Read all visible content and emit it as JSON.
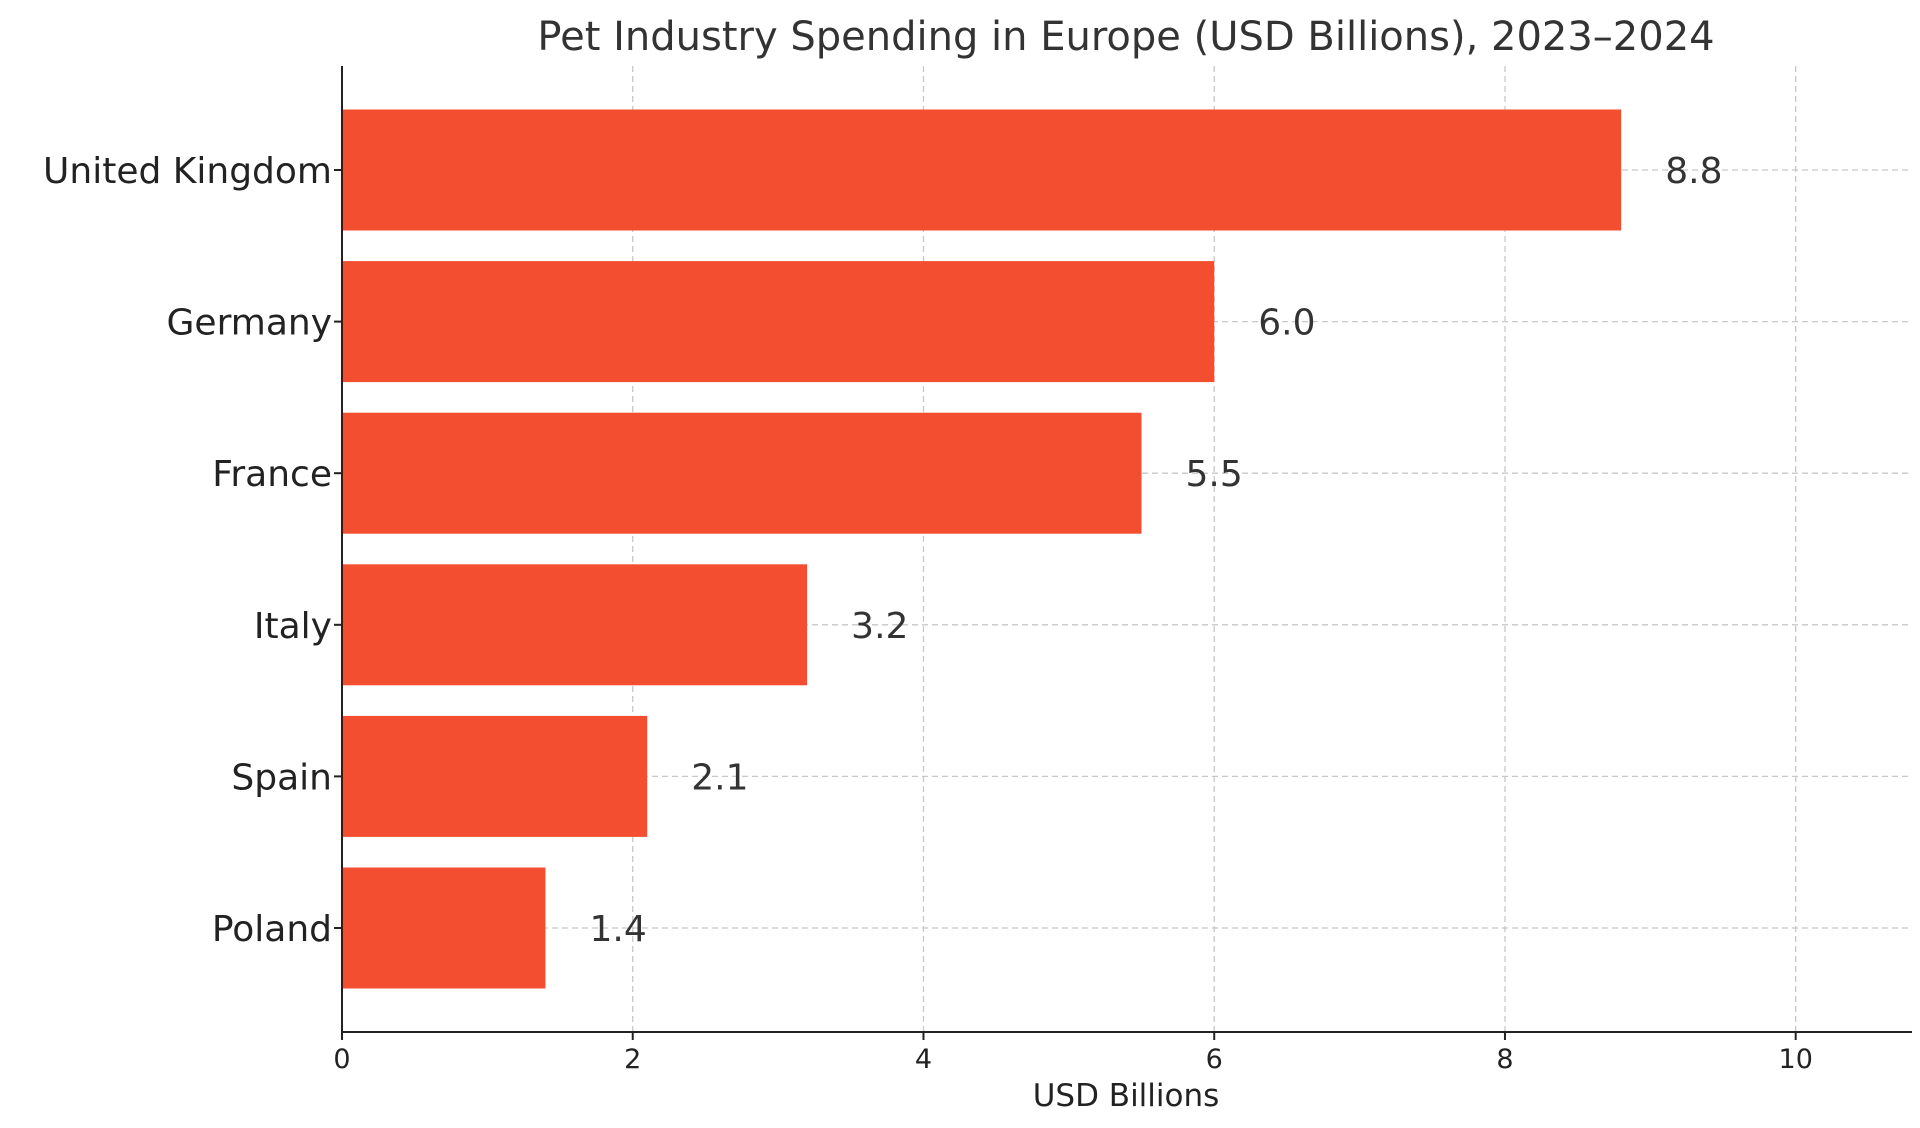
{
  "chart_data": {
    "type": "bar",
    "orientation": "horizontal",
    "title": "Pet Industry Spending in Europe (USD Billions), 2023–2024",
    "xlabel": "USD Billions",
    "ylabel": "",
    "categories": [
      "United Kingdom",
      "Germany",
      "France",
      "Italy",
      "Spain",
      "Poland"
    ],
    "values": [
      8.8,
      6.0,
      5.5,
      3.2,
      2.1,
      1.4
    ],
    "value_labels": [
      "8.8",
      "6.0",
      "5.5",
      "3.2",
      "2.1",
      "1.4"
    ],
    "xlim": [
      0,
      10.8
    ],
    "xticks": [
      0,
      2,
      4,
      6,
      8,
      10
    ],
    "grid": true,
    "legend": "none",
    "bar_color": "#f34e2f"
  }
}
